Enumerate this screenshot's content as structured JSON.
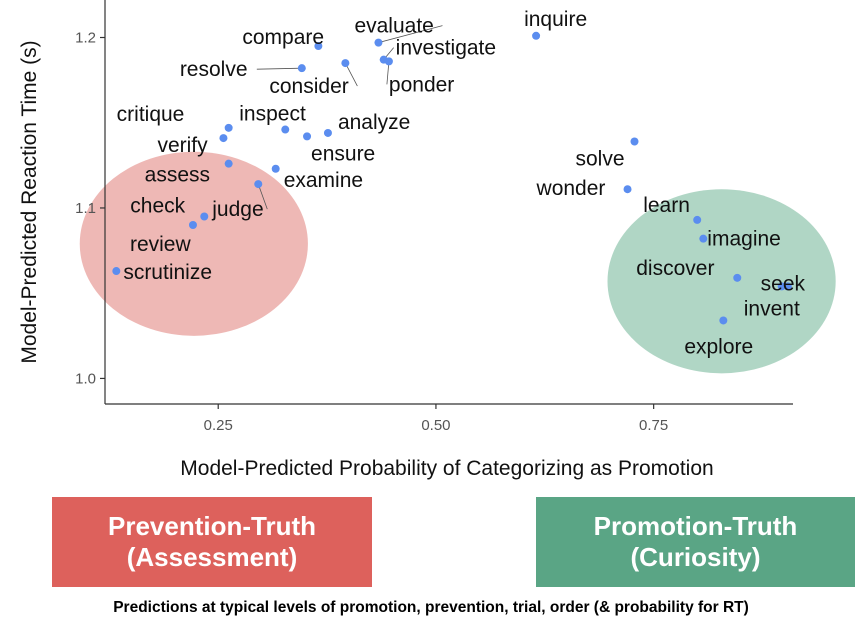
{
  "chart_data": {
    "type": "scatter",
    "xlabel": "Model-Predicted Probability of Categorizing as Promotion",
    "ylabel": "Model-Predicted Reaction Time (s)",
    "xlim": [
      0.12,
      0.91
    ],
    "ylim": [
      0.985,
      1.222
    ],
    "xticks": [
      {
        "value": 0.25,
        "label": "0.25"
      },
      {
        "value": 0.5,
        "label": "0.50"
      },
      {
        "value": 0.75,
        "label": "0.75"
      }
    ],
    "yticks": [
      {
        "value": 1.0,
        "label": "1.0"
      },
      {
        "value": 1.1,
        "label": "1.1"
      },
      {
        "value": 1.2,
        "label": "1.2"
      }
    ],
    "grid": false,
    "point_color": "#5B8DEF",
    "points": [
      {
        "label": "inquire",
        "x": 0.615,
        "y": 1.201
      },
      {
        "label": "evaluate",
        "x": 0.434,
        "y": 1.197
      },
      {
        "label": "compare",
        "x": 0.365,
        "y": 1.195
      },
      {
        "label": "investigate",
        "x": 0.44,
        "y": 1.187
      },
      {
        "label": "ponder",
        "x": 0.446,
        "y": 1.186
      },
      {
        "label": "consider",
        "x": 0.396,
        "y": 1.185
      },
      {
        "label": "resolve",
        "x": 0.346,
        "y": 1.182
      },
      {
        "label": "critique",
        "x": 0.262,
        "y": 1.147
      },
      {
        "label": "inspect",
        "x": 0.327,
        "y": 1.146
      },
      {
        "label": "analyze",
        "x": 0.376,
        "y": 1.144
      },
      {
        "label": "ensure",
        "x": 0.352,
        "y": 1.142
      },
      {
        "label": "verify",
        "x": 0.256,
        "y": 1.141
      },
      {
        "label": "assess",
        "x": 0.262,
        "y": 1.126
      },
      {
        "label": "examine",
        "x": 0.316,
        "y": 1.123
      },
      {
        "label": "judge",
        "x": 0.296,
        "y": 1.114
      },
      {
        "label": "check",
        "x": 0.234,
        "y": 1.095
      },
      {
        "label": "review",
        "x": 0.221,
        "y": 1.09
      },
      {
        "label": "scrutinize",
        "x": 0.133,
        "y": 1.063
      },
      {
        "label": "solve",
        "x": 0.728,
        "y": 1.139
      },
      {
        "label": "wonder",
        "x": 0.72,
        "y": 1.111
      },
      {
        "label": "learn",
        "x": 0.8,
        "y": 1.093
      },
      {
        "label": "imagine",
        "x": 0.807,
        "y": 1.082
      },
      {
        "label": "discover",
        "x": 0.846,
        "y": 1.059
      },
      {
        "label": "seek",
        "x": 0.897,
        "y": 1.054
      },
      {
        "label": "invent",
        "x": 0.904,
        "y": 1.054
      },
      {
        "label": "explore",
        "x": 0.83,
        "y": 1.034
      }
    ],
    "regions": [
      {
        "name": "prevention",
        "cx": 0.222,
        "cy": 1.079,
        "rx": 0.131,
        "ry": 0.054,
        "color": "#E07D78",
        "opacity": 0.55
      },
      {
        "name": "promotion",
        "cx": 0.828,
        "cy": 1.057,
        "rx": 0.131,
        "ry": 0.054,
        "color": "#6FB596",
        "opacity": 0.55
      }
    ]
  },
  "legend_boxes": {
    "prevention": {
      "line1": "Prevention-Truth",
      "line2": "(Assessment)",
      "color": "#DD615C"
    },
    "promotion": {
      "line1": "Promotion-Truth",
      "line2": "(Curiosity)",
      "color": "#5AA585"
    }
  },
  "footnote": "Predictions at typical levels of promotion, prevention, trial, order (& probability for RT)"
}
